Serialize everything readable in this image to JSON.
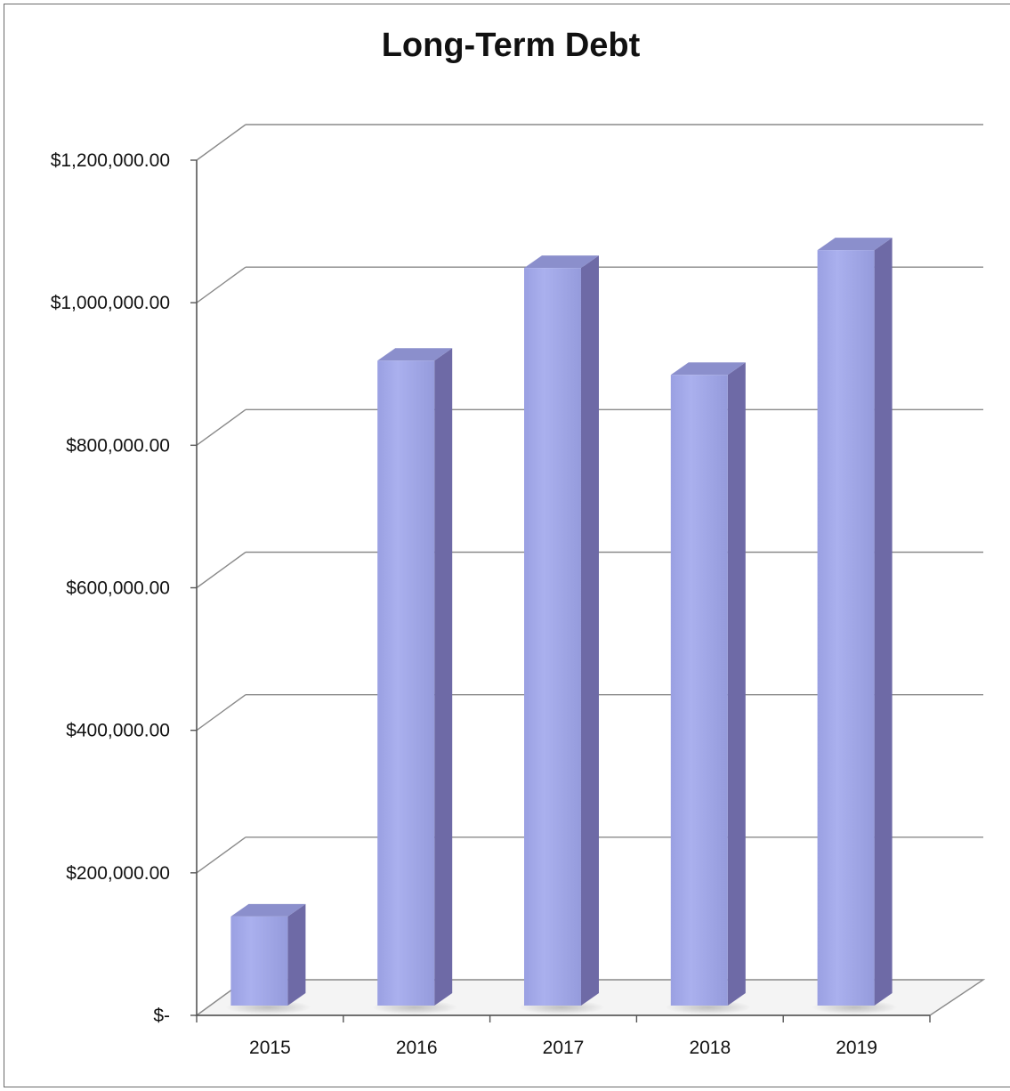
{
  "chart_data": {
    "type": "bar",
    "title": "Long-Term Debt",
    "xlabel": "",
    "ylabel": "",
    "categories": [
      "2015",
      "2016",
      "2017",
      "2018",
      "2019"
    ],
    "values": [
      125000,
      905000,
      1035000,
      885000,
      1060000
    ],
    "ylim": [
      0,
      1200000
    ],
    "y_ticks": [
      0,
      200000,
      400000,
      600000,
      800000,
      1000000,
      1200000
    ],
    "y_tick_labels": [
      "$-",
      "$200,000.00",
      "$400,000.00",
      "$600,000.00",
      "$800,000.00",
      "$1,000,000.00",
      "$1,200,000.00"
    ],
    "grid": true,
    "legend": "none",
    "style": "3d-column",
    "colors": {
      "bar_front": "#a3a9e8",
      "bar_top": "#8b8fcc",
      "bar_side": "#6e6aa6",
      "grid": "#8a8a8a",
      "axis": "#555555"
    }
  }
}
